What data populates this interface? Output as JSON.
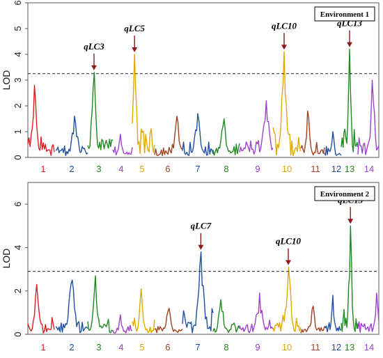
{
  "chart_data": [
    {
      "type": "line",
      "panel": "Environment 1",
      "ylabel": "LOD",
      "ylim": [
        0,
        6
      ],
      "yticks": [
        0,
        1,
        2,
        3,
        4,
        5,
        6
      ],
      "threshold": 3.25,
      "chromosomes": [
        "1",
        "2",
        "3",
        "4",
        "5",
        "6",
        "7",
        "8",
        "9",
        "10",
        "11",
        "12",
        "13",
        "14"
      ],
      "colors": [
        "#dd1e1e",
        "#1f4fa0",
        "#1e8a1e",
        "#a040d0",
        "#e0a800",
        "#a0401e",
        "#1f4fa0",
        "#1e8a1e",
        "#a040d0",
        "#e0a800",
        "#a0401e",
        "#1f4fa0",
        "#1e8a1e",
        "#a040d0"
      ],
      "peaks": [
        {
          "chrom": 1,
          "pos": 0.25,
          "lod": 2.8
        },
        {
          "chrom": 2,
          "pos": 0.6,
          "lod": 1.6
        },
        {
          "chrom": 3,
          "pos": 0.25,
          "lod": 3.3
        },
        {
          "chrom": 4,
          "pos": 0.4,
          "lod": 0.9
        },
        {
          "chrom": 5,
          "pos": 0.1,
          "lod": 4.0
        },
        {
          "chrom": 6,
          "pos": 0.8,
          "lod": 1.6
        },
        {
          "chrom": 7,
          "pos": 0.5,
          "lod": 1.7
        },
        {
          "chrom": 8,
          "pos": 0.4,
          "lod": 1.5
        },
        {
          "chrom": 9,
          "pos": 0.8,
          "lod": 2.2
        },
        {
          "chrom": 10,
          "pos": 0.4,
          "lod": 4.1
        },
        {
          "chrom": 11,
          "pos": 0.3,
          "lod": 1.8
        },
        {
          "chrom": 12,
          "pos": 0.5,
          "lod": 1.0
        },
        {
          "chrom": 13,
          "pos": 0.5,
          "lod": 4.2
        },
        {
          "chrom": 14,
          "pos": 0.7,
          "lod": 3.0
        }
      ],
      "qtl_labels": [
        {
          "label": "qLC3",
          "chrom": 3,
          "lod": 3.3
        },
        {
          "label": "qLC5",
          "chrom": 5,
          "lod": 4.0
        },
        {
          "label": "qLC10",
          "chrom": 10,
          "lod": 4.1
        },
        {
          "label": "qLC13",
          "chrom": 13,
          "lod": 4.2
        }
      ]
    },
    {
      "type": "line",
      "panel": "Environment 2",
      "ylabel": "LOD",
      "ylim": [
        0,
        7
      ],
      "yticks": [
        0,
        2,
        4,
        6
      ],
      "threshold": 2.9,
      "chromosomes": [
        "1",
        "2",
        "3",
        "4",
        "5",
        "6",
        "7",
        "8",
        "9",
        "10",
        "11",
        "12",
        "13",
        "14"
      ],
      "colors": [
        "#dd1e1e",
        "#1f4fa0",
        "#1e8a1e",
        "#a040d0",
        "#e0a800",
        "#a0401e",
        "#1f4fa0",
        "#1e8a1e",
        "#a040d0",
        "#e0a800",
        "#a0401e",
        "#1f4fa0",
        "#1e8a1e",
        "#a040d0"
      ],
      "peaks": [
        {
          "chrom": 1,
          "pos": 0.35,
          "lod": 2.3
        },
        {
          "chrom": 2,
          "pos": 0.5,
          "lod": 2.5
        },
        {
          "chrom": 3,
          "pos": 0.3,
          "lod": 2.7
        },
        {
          "chrom": 4,
          "pos": 0.4,
          "lod": 0.9
        },
        {
          "chrom": 5,
          "pos": 0.4,
          "lod": 2.1
        },
        {
          "chrom": 6,
          "pos": 0.5,
          "lod": 1.2
        },
        {
          "chrom": 7,
          "pos": 0.6,
          "lod": 3.8
        },
        {
          "chrom": 8,
          "pos": 0.3,
          "lod": 1.6
        },
        {
          "chrom": 9,
          "pos": 0.6,
          "lod": 1.9
        },
        {
          "chrom": 10,
          "pos": 0.55,
          "lod": 3.1
        },
        {
          "chrom": 11,
          "pos": 0.5,
          "lod": 1.3
        },
        {
          "chrom": 12,
          "pos": 0.5,
          "lod": 1.8
        },
        {
          "chrom": 13,
          "pos": 0.55,
          "lod": 5.0
        },
        {
          "chrom": 14,
          "pos": 0.9,
          "lod": 1.9
        }
      ],
      "qtl_labels": [
        {
          "label": "qLC7",
          "chrom": 7,
          "lod": 3.8
        },
        {
          "label": "qLC10",
          "chrom": 10,
          "lod": 3.1
        },
        {
          "label": "qLC13",
          "chrom": 13,
          "lod": 5.0
        }
      ]
    }
  ]
}
